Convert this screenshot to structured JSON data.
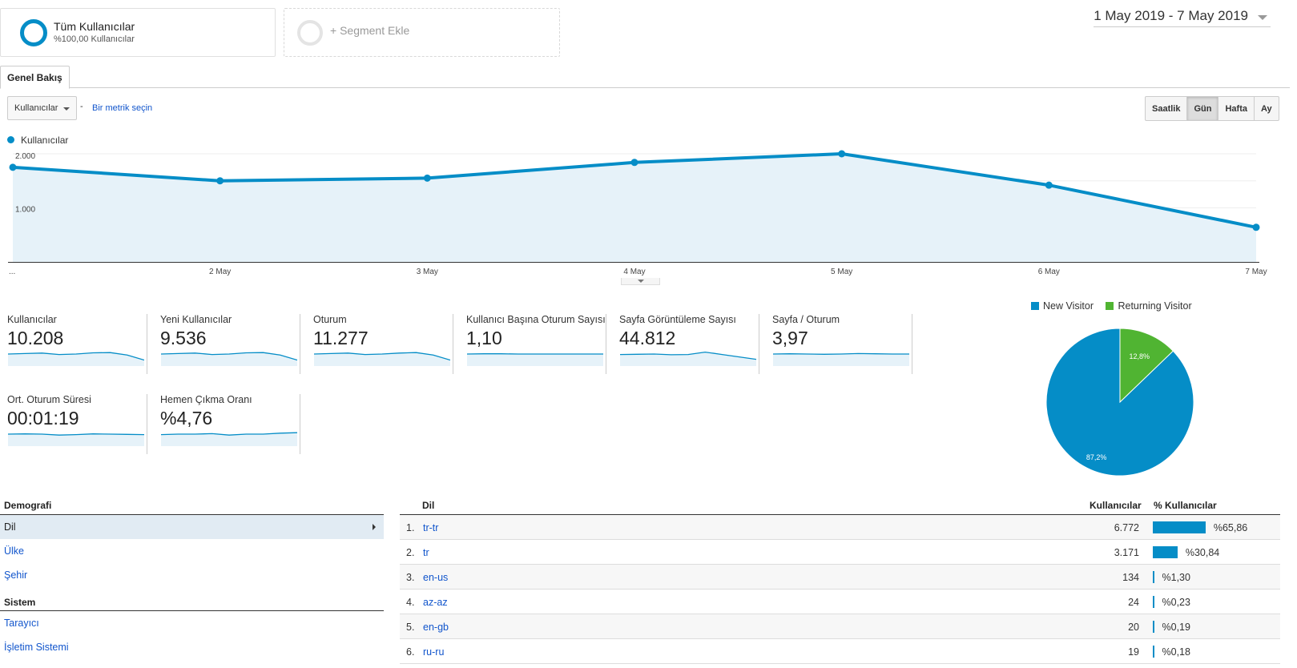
{
  "segments": {
    "all": {
      "title": "Tüm Kullanıcılar",
      "subtitle": "%100,00 Kullanıcılar"
    },
    "add": {
      "label": "+ Segment Ekle"
    }
  },
  "daterange": "1 May 2019 - 7 May 2019",
  "tabs": [
    {
      "label": "Genel Bakış"
    }
  ],
  "metric_select": {
    "value": "Kullanıcılar",
    "separator": "-",
    "link": "Bir metrik seçin"
  },
  "granularity": {
    "buttons": [
      "Saatlik",
      "Gün",
      "Hafta",
      "Ay"
    ],
    "active": "Gün"
  },
  "chart_legend": "Kullanıcılar",
  "colors": {
    "primary": "#058dc7",
    "secondary": "#50b432",
    "fill": "#e6f2f9",
    "link": "#1155cc"
  },
  "chart_data": [
    {
      "type": "line",
      "series": [
        {
          "name": "Kullanıcılar",
          "values": [
            1750,
            1500,
            1550,
            1840,
            2000,
            1420,
            640
          ]
        }
      ],
      "x": [
        "...",
        "2 May",
        "3 May",
        "4 May",
        "5 May",
        "6 May",
        "7 May"
      ],
      "yticks": [
        {
          "value": 2000,
          "label": "2.000"
        },
        {
          "value": 1000,
          "label": "1.000"
        }
      ],
      "ylim": [
        0,
        2000
      ],
      "grid": true
    },
    {
      "type": "pie",
      "categories": [
        "New Visitor",
        "Returning Visitor"
      ],
      "values": [
        87.2,
        12.8
      ],
      "labels": [
        "87,2%",
        "12,8%"
      ],
      "legend": "top"
    }
  ],
  "scorecards": [
    {
      "label": "Kullanıcılar",
      "value": "10.208",
      "spark": [
        5,
        5.2,
        5.4,
        4.8,
        5.0,
        5.5,
        5.6,
        4.6,
        2.5
      ]
    },
    {
      "label": "Yeni Kullanıcılar",
      "value": "9.536",
      "spark": [
        5,
        5.2,
        5.4,
        4.8,
        5.0,
        5.5,
        5.6,
        4.6,
        2.5
      ]
    },
    {
      "label": "Oturum",
      "value": "11.277",
      "spark": [
        5,
        5.2,
        5.4,
        4.8,
        5.0,
        5.4,
        5.6,
        4.6,
        2.5
      ]
    },
    {
      "label": "Kullanıcı Başına Oturum Sayısı",
      "value": "1,10",
      "spark": [
        5,
        5.1,
        5.1,
        5.0,
        5.0,
        5.0,
        5.0,
        5.0,
        5.0
      ]
    },
    {
      "label": "Sayfa Görüntüleme Sayısı",
      "value": "44.812",
      "spark": [
        4.8,
        4.9,
        5.0,
        4.7,
        4.8,
        5.8,
        4.8,
        3.8,
        2.8
      ]
    },
    {
      "label": "Sayfa / Oturum",
      "value": "3,97",
      "spark": [
        5,
        5.1,
        5.0,
        4.9,
        5.0,
        5.2,
        5.1,
        5.0,
        5.0
      ]
    },
    {
      "label": "Ort. Oturum Süresi",
      "value": "00:01:19",
      "spark": [
        5,
        5.1,
        5.0,
        4.6,
        4.8,
        5.1,
        5.0,
        4.9,
        4.8
      ]
    },
    {
      "label": "Hemen Çıkma Oranı",
      "value": "%4,76",
      "spark": [
        4.8,
        5.0,
        5.0,
        5.2,
        4.6,
        5.0,
        5.0,
        5.4,
        5.6
      ]
    }
  ],
  "sidebar": {
    "sections": [
      {
        "title": "Demografi",
        "items": [
          {
            "label": "Dil",
            "selected": true
          },
          {
            "label": "Ülke"
          },
          {
            "label": "Şehir"
          }
        ]
      },
      {
        "title": "Sistem",
        "items": [
          {
            "label": "Tarayıcı"
          },
          {
            "label": "İşletim Sistemi"
          }
        ]
      }
    ]
  },
  "table": {
    "headers": {
      "dimension": "Dil",
      "users": "Kullanıcılar",
      "pct": "% Kullanıcılar"
    },
    "rows": [
      {
        "num": "1.",
        "lang": "tr-tr",
        "users": "6.772",
        "pct": "%65,86",
        "share": 65.86
      },
      {
        "num": "2.",
        "lang": "tr",
        "users": "3.171",
        "pct": "%30,84",
        "share": 30.84
      },
      {
        "num": "3.",
        "lang": "en-us",
        "users": "134",
        "pct": "%1,30",
        "share": 1.3
      },
      {
        "num": "4.",
        "lang": "az-az",
        "users": "24",
        "pct": "%0,23",
        "share": 0.23
      },
      {
        "num": "5.",
        "lang": "en-gb",
        "users": "20",
        "pct": "%0,19",
        "share": 0.19
      },
      {
        "num": "6.",
        "lang": "ru-ru",
        "users": "19",
        "pct": "%0,18",
        "share": 0.18
      }
    ]
  }
}
